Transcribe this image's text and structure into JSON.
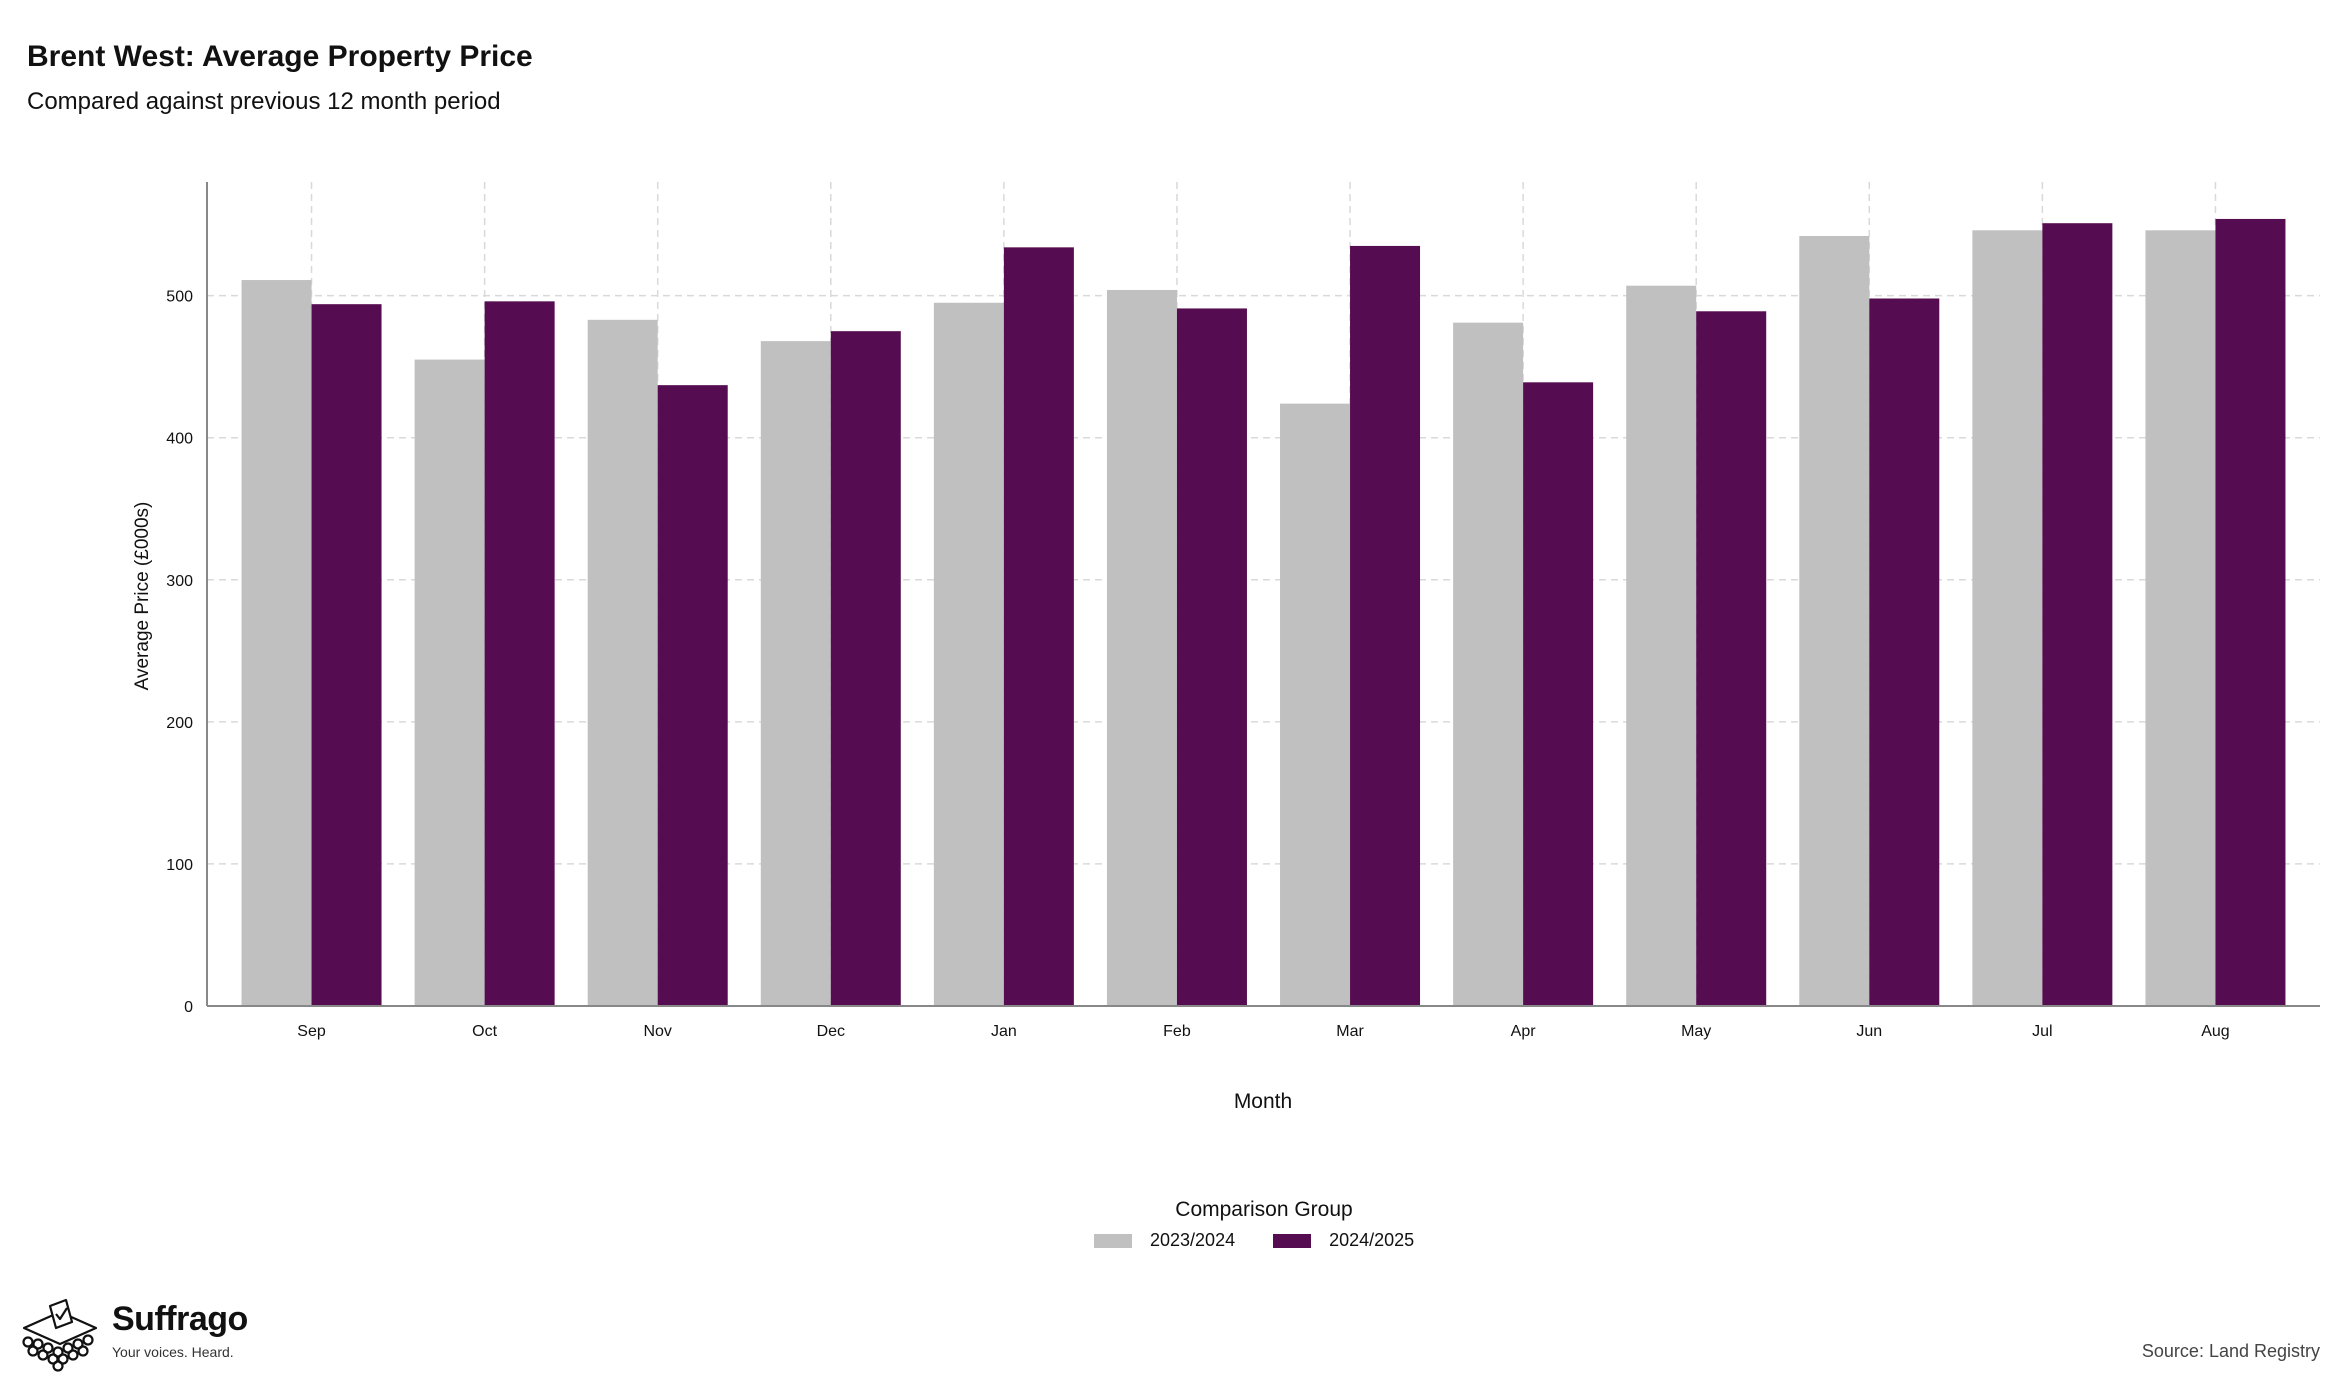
{
  "header": {
    "title": "Brent West: Average Property Price",
    "subtitle": "Compared against previous 12 month period"
  },
  "colors": {
    "series_2023": "#c0c0c0",
    "series_2024": "#560c50",
    "grid": "#d9d9d9",
    "axis": "#888888"
  },
  "legend": {
    "title": "Comparison Group",
    "items": [
      "2023/2024",
      "2024/2025"
    ]
  },
  "branding": {
    "name": "Suffrago",
    "tagline": "Your voices. Heard."
  },
  "footer": {
    "source": "Source: Land Registry"
  },
  "chart_data": {
    "type": "bar",
    "xlabel": "Month",
    "ylabel": "Average Price (£000s)",
    "ylim": [
      0,
      580
    ],
    "yticks": [
      0,
      100,
      200,
      300,
      400,
      500
    ],
    "grid": true,
    "legend_position": "bottom",
    "categories": [
      "Sep",
      "Oct",
      "Nov",
      "Dec",
      "Jan",
      "Feb",
      "Mar",
      "Apr",
      "May",
      "Jun",
      "Jul",
      "Aug"
    ],
    "series": [
      {
        "name": "2023/2024",
        "values": [
          511,
          455,
          483,
          468,
          495,
          504,
          424,
          481,
          507,
          542,
          546,
          546
        ]
      },
      {
        "name": "2024/2025",
        "values": [
          494,
          496,
          437,
          475,
          534,
          491,
          535,
          439,
          489,
          498,
          551,
          554
        ]
      }
    ]
  }
}
